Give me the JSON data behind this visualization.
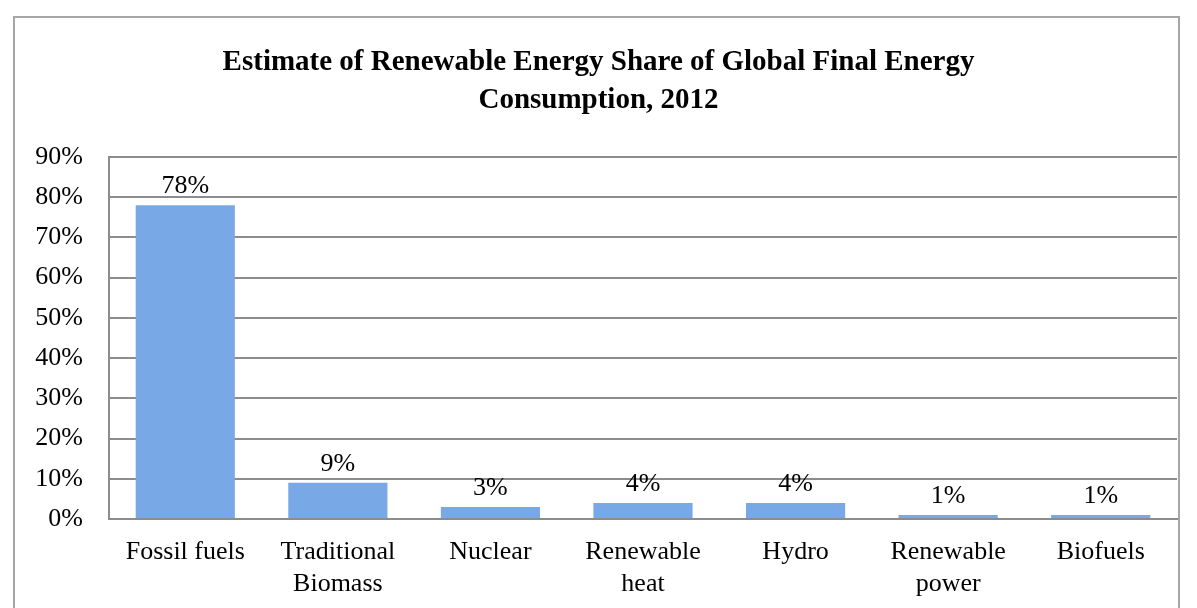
{
  "chart_data": {
    "type": "bar",
    "title": "Estimate of Renewable Energy Share of Global Final Energy Consumption, 2012",
    "categories": [
      "Fossil fuels",
      "Traditional Biomass",
      "Nuclear",
      "Renewable heat",
      "Hydro",
      "Renewable power",
      "Biofuels"
    ],
    "values": [
      78,
      9,
      3,
      4,
      4,
      1,
      1
    ],
    "value_labels": [
      "78%",
      "9%",
      "3%",
      "4%",
      "4%",
      "1%",
      "1%"
    ],
    "color": "#78a9e6",
    "ylim": [
      0,
      90
    ],
    "yticks": [
      {
        "value": 0,
        "label": "0%"
      },
      {
        "value": 10,
        "label": "10%"
      },
      {
        "value": 20,
        "label": "20%"
      },
      {
        "value": 30,
        "label": "30%"
      },
      {
        "value": 40,
        "label": "40%"
      },
      {
        "value": 50,
        "label": "50%"
      },
      {
        "value": 60,
        "label": "60%"
      },
      {
        "value": 70,
        "label": "70%"
      },
      {
        "value": 80,
        "label": "80%"
      },
      {
        "value": 90,
        "label": "90%"
      }
    ],
    "grid": "y",
    "legend": false
  }
}
